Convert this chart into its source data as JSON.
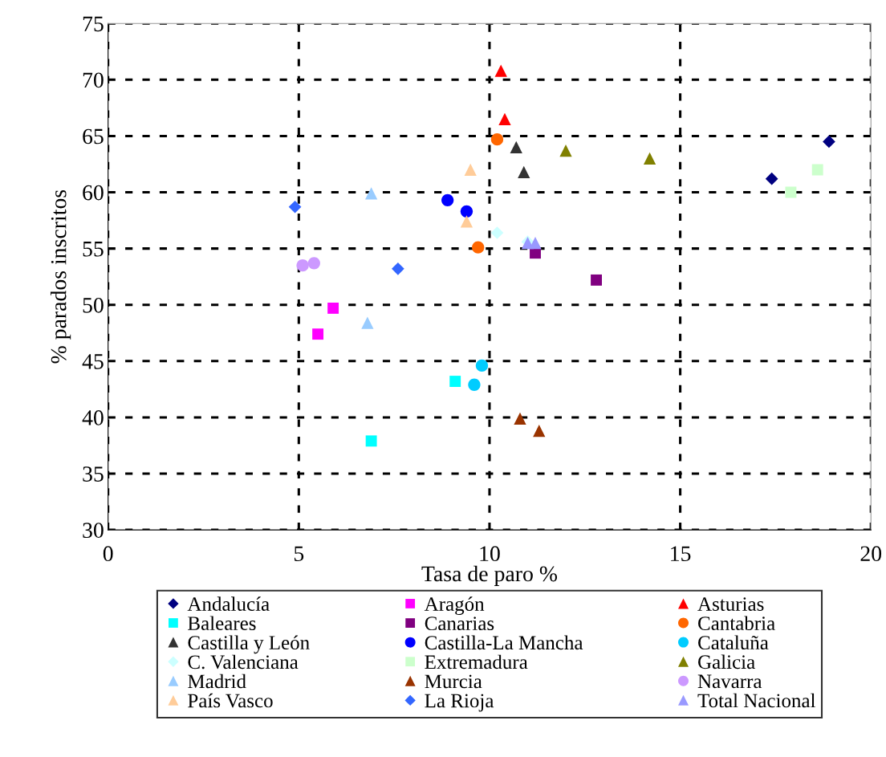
{
  "chart_data": {
    "type": "scatter",
    "xlabel": "Tasa de paro %",
    "ylabel": "% parados inscritos",
    "xlim": [
      0,
      20
    ],
    "xticks": [
      0,
      5,
      10,
      15,
      20
    ],
    "ylim": [
      30,
      75
    ],
    "yticks": [
      30,
      35,
      40,
      45,
      50,
      55,
      60,
      65,
      70,
      75
    ],
    "grid": true,
    "legend": "bottom",
    "series": [
      {
        "name": "Andalucía",
        "color": "#000080",
        "marker": "diamond",
        "x": [
          17.4,
          18.9
        ],
        "values": [
          61.2,
          64.5
        ]
      },
      {
        "name": "Aragón",
        "color": "#ff00ff",
        "marker": "square",
        "x": [
          5.9,
          5.5
        ],
        "values": [
          49.7,
          47.4
        ]
      },
      {
        "name": "Asturias",
        "color": "#ff0000",
        "marker": "triangle",
        "x": [
          10.3,
          10.4
        ],
        "values": [
          70.8,
          66.5
        ]
      },
      {
        "name": "Baleares",
        "color": "#00ffff",
        "marker": "square",
        "x": [
          9.1,
          6.9
        ],
        "values": [
          43.2,
          37.9
        ]
      },
      {
        "name": "Canarias",
        "color": "#800080",
        "marker": "square",
        "x": [
          11.2,
          12.8
        ],
        "values": [
          54.6,
          52.2
        ]
      },
      {
        "name": "Cantabria",
        "color": "#ff6600",
        "marker": "circle",
        "x": [
          10.2,
          9.7
        ],
        "values": [
          64.7,
          55.1
        ]
      },
      {
        "name": "Castilla y León",
        "color": "#333333",
        "marker": "triangle",
        "x": [
          10.7,
          10.9
        ],
        "values": [
          64.0,
          61.8
        ]
      },
      {
        "name": "Castilla-La Mancha",
        "color": "#0000ff",
        "marker": "circle",
        "x": [
          8.9,
          9.4
        ],
        "values": [
          59.3,
          58.3
        ]
      },
      {
        "name": "Cataluña",
        "color": "#00ccff",
        "marker": "circle",
        "x": [
          9.8,
          9.6
        ],
        "values": [
          44.6,
          42.9
        ]
      },
      {
        "name": "C. Valenciana",
        "color": "#ccffff",
        "marker": "diamond",
        "x": [
          10.2,
          11.0
        ],
        "values": [
          56.4,
          55.6
        ]
      },
      {
        "name": "Extremadura",
        "color": "#ccffcc",
        "marker": "square",
        "x": [
          17.9,
          18.6
        ],
        "values": [
          60.0,
          62.0
        ]
      },
      {
        "name": "Galicia",
        "color": "#808000",
        "marker": "triangle",
        "x": [
          12.0,
          14.2
        ],
        "values": [
          63.7,
          63.0
        ]
      },
      {
        "name": "Madrid",
        "color": "#99ccff",
        "marker": "triangle",
        "x": [
          6.9,
          6.8
        ],
        "values": [
          59.9,
          48.4
        ]
      },
      {
        "name": "Murcia",
        "color": "#993300",
        "marker": "triangle",
        "x": [
          10.8,
          11.3
        ],
        "values": [
          39.9,
          38.8
        ]
      },
      {
        "name": "Navarra",
        "color": "#cc99ff",
        "marker": "circle",
        "x": [
          5.1,
          5.4
        ],
        "values": [
          53.5,
          53.7
        ]
      },
      {
        "name": "País Vasco",
        "color": "#ffcc99",
        "marker": "triangle",
        "x": [
          9.5,
          9.4
        ],
        "values": [
          62.0,
          57.4
        ]
      },
      {
        "name": "La Rioja",
        "color": "#3366ff",
        "marker": "diamond",
        "x": [
          4.9,
          7.6
        ],
        "values": [
          58.7,
          53.2
        ]
      },
      {
        "name": "Total Nacional",
        "color": "#9999ff",
        "marker": "triangle",
        "x": [
          11.0,
          11.2
        ],
        "values": [
          55.5,
          55.5
        ]
      }
    ]
  }
}
